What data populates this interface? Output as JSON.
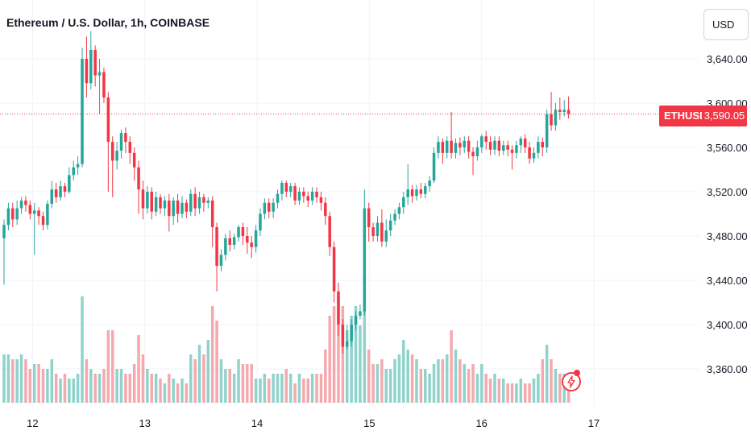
{
  "header": {
    "title": "Ethereum / U.S. Dollar, 1h, COINBASE"
  },
  "currency_button": {
    "label": "USD"
  },
  "last_price": {
    "ticker": "ETHUSD",
    "price": "3,590.05",
    "value": 3590.05
  },
  "colors": {
    "up": "#26a69a",
    "down": "#f23645",
    "volume_up": "#8fd3cc",
    "volume_down": "#f5a9ae",
    "grid": "#f0f3fa",
    "axis_text": "#131722"
  },
  "icons": {
    "flash": "flash-icon"
  },
  "chart_data": {
    "type": "candlestick",
    "title": "Ethereum / U.S. Dollar, 1h, COINBASE",
    "ylim": [
      3330,
      3680
    ],
    "y_ticks": [
      "3,360.00",
      "3,400.00",
      "3,440.00",
      "3,480.00",
      "3,520.00",
      "3,560.00",
      "3,600.00",
      "3,640.00"
    ],
    "y_tick_values": [
      3360,
      3400,
      3440,
      3480,
      3520,
      3560,
      3600,
      3640
    ],
    "x_ticks": [
      "12",
      "13",
      "14",
      "15",
      "16",
      "17"
    ],
    "x_tick_values": [
      12,
      13,
      14,
      15,
      16,
      17
    ],
    "xlim": [
      11.71,
      17.0
    ],
    "grid": true,
    "candles": [
      [
        3478,
        3490,
        3436,
        3495,
        1.0
      ],
      [
        3490,
        3505,
        3485,
        3510,
        1.0
      ],
      [
        3505,
        3495,
        3488,
        3510,
        0.9
      ],
      [
        3495,
        3505,
        3490,
        3512,
        0.9
      ],
      [
        3505,
        3512,
        3500,
        3515,
        1.0
      ],
      [
        3512,
        3508,
        3502,
        3516,
        0.9
      ],
      [
        3508,
        3500,
        3495,
        3512,
        0.7
      ],
      [
        3500,
        3503,
        3463,
        3510,
        0.8
      ],
      [
        3503,
        3498,
        3490,
        3506,
        0.8
      ],
      [
        3498,
        3490,
        3485,
        3502,
        0.7
      ],
      [
        3490,
        3509,
        3486,
        3512,
        0.7
      ],
      [
        3509,
        3522,
        3505,
        3530,
        0.9
      ],
      [
        3522,
        3515,
        3510,
        3528,
        0.6
      ],
      [
        3515,
        3525,
        3512,
        3530,
        0.5
      ],
      [
        3525,
        3520,
        3515,
        3528,
        0.6
      ],
      [
        3520,
        3535,
        3518,
        3542,
        0.5
      ],
      [
        3535,
        3542,
        3530,
        3548,
        0.5
      ],
      [
        3542,
        3545,
        3535,
        3552,
        0.6
      ],
      [
        3545,
        3640,
        3542,
        3650,
        2.2
      ],
      [
        3640,
        3618,
        3605,
        3660,
        0.9
      ],
      [
        3618,
        3648,
        3612,
        3665,
        0.7
      ],
      [
        3648,
        3625,
        3615,
        3652,
        0.6
      ],
      [
        3625,
        3628,
        3590,
        3640,
        0.6
      ],
      [
        3628,
        3605,
        3600,
        3632,
        0.7
      ],
      [
        3605,
        3565,
        3520,
        3610,
        1.5
      ],
      [
        3565,
        3548,
        3515,
        3570,
        1.5
      ],
      [
        3548,
        3557,
        3540,
        3565,
        0.7
      ],
      [
        3557,
        3573,
        3550,
        3576,
        0.7
      ],
      [
        3573,
        3565,
        3555,
        3578,
        0.6
      ],
      [
        3565,
        3555,
        3545,
        3570,
        0.6
      ],
      [
        3555,
        3542,
        3530,
        3560,
        0.8
      ],
      [
        3542,
        3522,
        3500,
        3548,
        1.4
      ],
      [
        3522,
        3505,
        3495,
        3530,
        1.0
      ],
      [
        3505,
        3520,
        3500,
        3525,
        0.7
      ],
      [
        3520,
        3502,
        3495,
        3524,
        0.6
      ],
      [
        3502,
        3515,
        3498,
        3520,
        0.6
      ],
      [
        3515,
        3505,
        3500,
        3518,
        0.5
      ],
      [
        3505,
        3512,
        3498,
        3516,
        0.4
      ],
      [
        3512,
        3498,
        3484,
        3518,
        0.6
      ],
      [
        3498,
        3512,
        3490,
        3515,
        0.5
      ],
      [
        3512,
        3500,
        3492,
        3518,
        0.4
      ],
      [
        3500,
        3510,
        3496,
        3516,
        0.5
      ],
      [
        3510,
        3502,
        3496,
        3513,
        0.4
      ],
      [
        3502,
        3518,
        3498,
        3522,
        1.0
      ],
      [
        3518,
        3505,
        3498,
        3524,
        0.9
      ],
      [
        3505,
        3515,
        3500,
        3520,
        1.2
      ],
      [
        3515,
        3510,
        3502,
        3518,
        1.0
      ],
      [
        3510,
        3512,
        3505,
        3515,
        1.3
      ],
      [
        3512,
        3488,
        3470,
        3516,
        2.0
      ],
      [
        3488,
        3453,
        3430,
        3492,
        1.7
      ],
      [
        3453,
        3463,
        3448,
        3468,
        0.9
      ],
      [
        3463,
        3478,
        3458,
        3482,
        0.7
      ],
      [
        3478,
        3472,
        3466,
        3485,
        0.7
      ],
      [
        3472,
        3479,
        3468,
        3482,
        0.6
      ],
      [
        3479,
        3488,
        3475,
        3490,
        0.9
      ],
      [
        3488,
        3480,
        3472,
        3492,
        0.8
      ],
      [
        3480,
        3474,
        3464,
        3488,
        0.8
      ],
      [
        3474,
        3470,
        3460,
        3480,
        0.8
      ],
      [
        3470,
        3485,
        3465,
        3490,
        0.5
      ],
      [
        3485,
        3500,
        3480,
        3505,
        0.5
      ],
      [
        3500,
        3510,
        3495,
        3514,
        0.6
      ],
      [
        3510,
        3502,
        3496,
        3514,
        0.5
      ],
      [
        3502,
        3510,
        3496,
        3514,
        0.6
      ],
      [
        3510,
        3518,
        3505,
        3522,
        0.6
      ],
      [
        3518,
        3528,
        3512,
        3530,
        0.6
      ],
      [
        3528,
        3520,
        3515,
        3530,
        0.7
      ],
      [
        3520,
        3525,
        3515,
        3528,
        0.6
      ],
      [
        3525,
        3512,
        3508,
        3528,
        0.4
      ],
      [
        3512,
        3520,
        3508,
        3524,
        0.6
      ],
      [
        3520,
        3516,
        3510,
        3524,
        0.5
      ],
      [
        3516,
        3512,
        3506,
        3520,
        0.5
      ],
      [
        3512,
        3520,
        3508,
        3524,
        0.6
      ],
      [
        3520,
        3515,
        3510,
        3524,
        0.6
      ],
      [
        3515,
        3510,
        3503,
        3520,
        0.6
      ],
      [
        3510,
        3498,
        3490,
        3515,
        1.1
      ],
      [
        3498,
        3470,
        3462,
        3502,
        1.8
      ],
      [
        3470,
        3430,
        3420,
        3475,
        2.0
      ],
      [
        3430,
        3400,
        3390,
        3438,
        2.2
      ],
      [
        3400,
        3380,
        3374,
        3405,
        2.0
      ],
      [
        3380,
        3385,
        3378,
        3400,
        1.5
      ],
      [
        3385,
        3400,
        3380,
        3405,
        1.8
      ],
      [
        3400,
        3408,
        3395,
        3412,
        2.0
      ],
      [
        3408,
        3412,
        3405,
        3418,
        1.6
      ],
      [
        3412,
        3505,
        3408,
        3522,
        2.6
      ],
      [
        3505,
        3488,
        3475,
        3510,
        1.1
      ],
      [
        3488,
        3480,
        3475,
        3492,
        0.8
      ],
      [
        3480,
        3492,
        3475,
        3498,
        0.8
      ],
      [
        3492,
        3475,
        3470,
        3504,
        0.9
      ],
      [
        3475,
        3485,
        3470,
        3495,
        0.7
      ],
      [
        3485,
        3494,
        3480,
        3500,
        0.7
      ],
      [
        3494,
        3500,
        3490,
        3504,
        0.9
      ],
      [
        3500,
        3506,
        3495,
        3510,
        1.0
      ],
      [
        3506,
        3515,
        3500,
        3520,
        1.3
      ],
      [
        3515,
        3522,
        3508,
        3545,
        1.1
      ],
      [
        3522,
        3516,
        3510,
        3526,
        1.0
      ],
      [
        3516,
        3522,
        3512,
        3526,
        0.9
      ],
      [
        3522,
        3518,
        3514,
        3528,
        0.7
      ],
      [
        3518,
        3525,
        3514,
        3528,
        0.7
      ],
      [
        3525,
        3530,
        3520,
        3534,
        0.6
      ],
      [
        3530,
        3555,
        3528,
        3560,
        0.8
      ],
      [
        3555,
        3565,
        3550,
        3570,
        0.9
      ],
      [
        3565,
        3555,
        3545,
        3568,
        0.9
      ],
      [
        3555,
        3566,
        3550,
        3570,
        1.0
      ],
      [
        3566,
        3555,
        3550,
        3592,
        1.5
      ],
      [
        3555,
        3564,
        3550,
        3568,
        1.1
      ],
      [
        3564,
        3560,
        3553,
        3569,
        0.9
      ],
      [
        3560,
        3566,
        3555,
        3570,
        0.8
      ],
      [
        3566,
        3556,
        3550,
        3570,
        0.7
      ],
      [
        3556,
        3552,
        3535,
        3560,
        0.8
      ],
      [
        3552,
        3560,
        3548,
        3566,
        0.6
      ],
      [
        3560,
        3570,
        3555,
        3572,
        0.8
      ],
      [
        3570,
        3565,
        3558,
        3575,
        0.6
      ],
      [
        3565,
        3558,
        3553,
        3570,
        0.5
      ],
      [
        3558,
        3566,
        3553,
        3570,
        0.6
      ],
      [
        3566,
        3557,
        3552,
        3570,
        0.5
      ],
      [
        3557,
        3562,
        3553,
        3566,
        0.5
      ],
      [
        3562,
        3558,
        3552,
        3566,
        0.4
      ],
      [
        3558,
        3555,
        3540,
        3562,
        0.4
      ],
      [
        3555,
        3562,
        3550,
        3566,
        0.4
      ],
      [
        3562,
        3568,
        3555,
        3570,
        0.5
      ],
      [
        3568,
        3560,
        3555,
        3572,
        0.4
      ],
      [
        3560,
        3550,
        3545,
        3565,
        0.4
      ],
      [
        3550,
        3555,
        3546,
        3560,
        0.5
      ],
      [
        3555,
        3565,
        3550,
        3570,
        0.6
      ],
      [
        3565,
        3560,
        3552,
        3569,
        0.9
      ],
      [
        3560,
        3590,
        3555,
        3594,
        1.2
      ],
      [
        3590,
        3580,
        3575,
        3610,
        0.9
      ],
      [
        3580,
        3594,
        3575,
        3600,
        0.7
      ],
      [
        3594,
        3592,
        3585,
        3605,
        0.6
      ],
      [
        3592,
        3594,
        3588,
        3603,
        0.6
      ],
      [
        3594,
        3590,
        3586,
        3606,
        0.4
      ]
    ]
  }
}
